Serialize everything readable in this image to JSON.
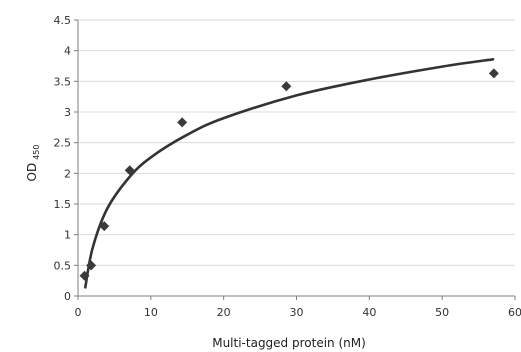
{
  "chart_data": {
    "type": "scatter",
    "title": "",
    "xlabel": "Multi-tagged protein (nM)",
    "ylabel": "OD",
    "ylabel_subscript": "450",
    "xlim": [
      0,
      60
    ],
    "ylim": [
      0,
      4.5
    ],
    "x_ticks": [
      "0",
      "10",
      "20",
      "30",
      "40",
      "50",
      "60"
    ],
    "y_ticks": [
      "0",
      "0.5",
      "1",
      "1.5",
      "2",
      "2.5",
      "3",
      "3.5",
      "4",
      "4.5"
    ],
    "grid": "horizontal",
    "legend": "none",
    "marker": "diamond",
    "colors": {
      "marker": "#3a3a3a",
      "line": "#333333",
      "grid": "#d9d9d9",
      "axis": "#7f7f7f"
    },
    "series": [
      {
        "x": [
          0.9,
          1.8,
          3.6,
          7.1,
          14.3,
          28.6,
          57.1
        ],
        "y": [
          0.33,
          0.5,
          1.14,
          2.05,
          2.83,
          3.42,
          3.63
        ]
      }
    ],
    "trendline": {
      "type": "logarithmic",
      "x": [
        1,
        2,
        4,
        7,
        10,
        15,
        20,
        30,
        40,
        50,
        57
      ],
      "y": [
        0.14,
        0.78,
        1.42,
        1.93,
        2.26,
        2.63,
        2.9,
        3.27,
        3.53,
        3.74,
        3.86
      ]
    }
  }
}
